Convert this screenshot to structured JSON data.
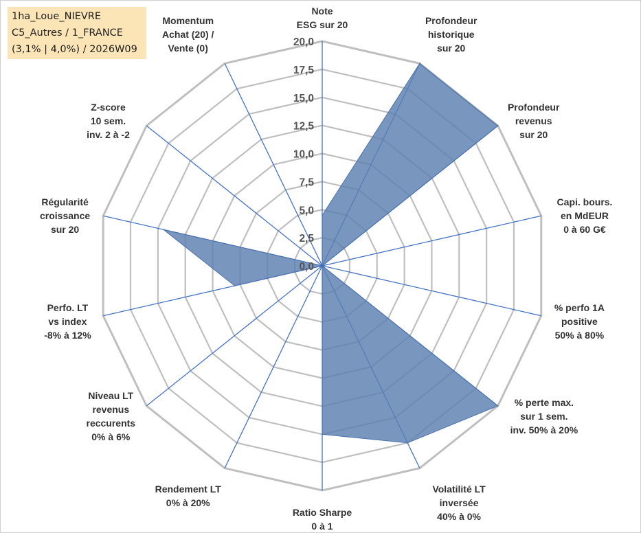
{
  "info_box": {
    "line1": "1ha_Loue_NIEVRE",
    "line2": "C5_Autres / 1_FRANCE",
    "line3": "(3,1% | 4,0%) / 2026W09"
  },
  "colors": {
    "grid": "#bfbfbf",
    "spoke": "#4472c4",
    "fill": "#5b7fb0",
    "fill_stroke": "#4a72b0",
    "box_bg": "#fbe5b6"
  },
  "chart_data": {
    "type": "radar",
    "title": "",
    "rmin": 0,
    "rmax": 20,
    "tick_step": 2.5,
    "ticks": [
      "0,0",
      "2,5",
      "5,0",
      "7,5",
      "10,0",
      "12,5",
      "15,0",
      "17,5",
      "20,0"
    ],
    "grid": true,
    "axes": [
      {
        "label": [
          "Note",
          "ESG sur 20"
        ],
        "value": 4.5
      },
      {
        "label": [
          "Profondeur",
          "historique",
          "sur 20"
        ],
        "value": 20
      },
      {
        "label": [
          "Profondeur",
          "revenus",
          "sur 20"
        ],
        "value": 20
      },
      {
        "label": [
          "Capi. bours.",
          "en MdEUR",
          "0 à 60 G€"
        ],
        "value": 0
      },
      {
        "label": [
          "% perfo 1A",
          "positive",
          "50% à 80%"
        ],
        "value": 0
      },
      {
        "label": [
          "% perte max.",
          "sur 1 sem.",
          "inv. 50% à 20%"
        ],
        "value": 20
      },
      {
        "label": [
          "Volatilité LT",
          "inversée",
          "40% à 0%"
        ],
        "value": 17.5
      },
      {
        "label": [
          "Ratio Sharpe",
          "0 à 1"
        ],
        "value": 15
      },
      {
        "label": [
          "Rendement LT",
          "0% à 20%"
        ],
        "value": 0
      },
      {
        "label": [
          "Niveau LT",
          "revenus",
          "reccurents",
          "0% à 6%"
        ],
        "value": 0
      },
      {
        "label": [
          "Perfo. LT",
          "vs index",
          "-8% à 12%"
        ],
        "value": 8
      },
      {
        "label": [
          "Régularité",
          "croissance",
          "sur 20"
        ],
        "value": 14.5
      },
      {
        "label": [
          "Z-score",
          "10 sem.",
          "inv. 2 à -2"
        ],
        "value": 0
      },
      {
        "label": [
          "Momentum",
          "Achat (20) /",
          "Vente (0)"
        ],
        "value": 0
      }
    ]
  }
}
